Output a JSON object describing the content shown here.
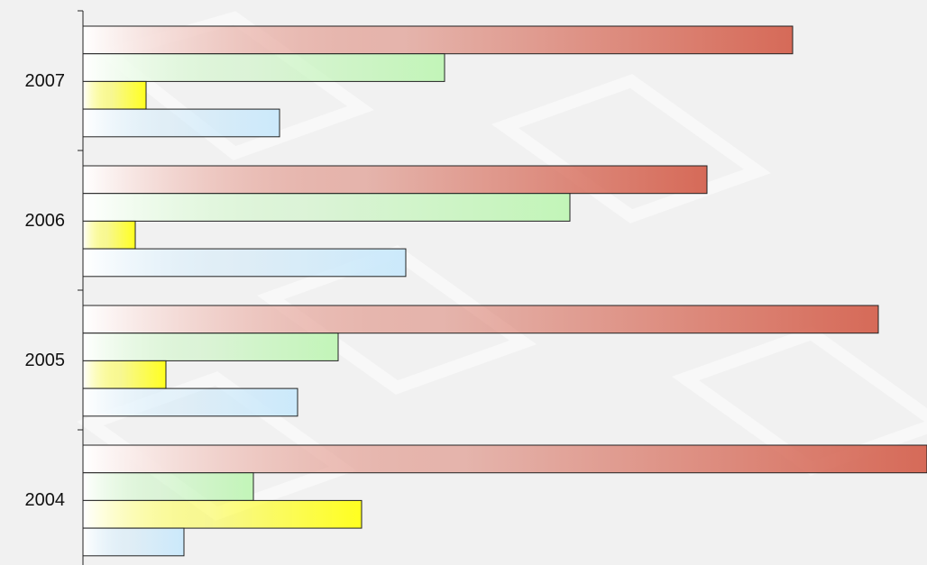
{
  "chart_data": {
    "type": "hbar",
    "categories": [
      "2007",
      "2006",
      "2005",
      "2004"
    ],
    "series": [
      {
        "color": "#d66a58",
        "values": [
          787,
          692,
          882,
          936
        ]
      },
      {
        "color": "#c2f5b8",
        "values": [
          401,
          540,
          283,
          189
        ]
      },
      {
        "color": "#ffff20",
        "values": [
          70,
          58,
          92,
          309
        ]
      },
      {
        "color": "#cbe9fb",
        "values": [
          218,
          358,
          238,
          112
        ]
      }
    ],
    "xlim": [
      0,
      936
    ]
  }
}
